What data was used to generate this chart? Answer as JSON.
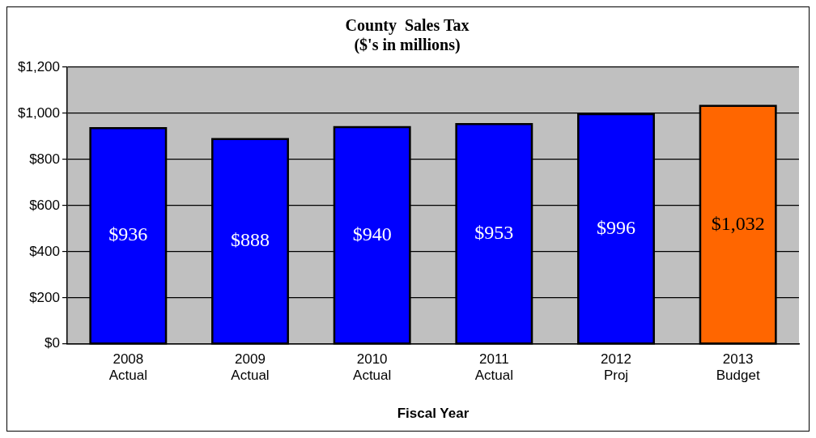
{
  "chart_data": {
    "type": "bar",
    "title": [
      "County  Sales Tax",
      "($'s in millions)"
    ],
    "xlabel": "Fiscal Year",
    "categories": [
      "2008\nActual",
      "2009\nActual",
      "2010\nActual",
      "2011\nActual",
      "2012\nProj",
      "2013\nBudget"
    ],
    "values": [
      936,
      888,
      940,
      953,
      996,
      1032
    ],
    "colors": [
      "#0000ff",
      "#0000ff",
      "#0000ff",
      "#0000ff",
      "#0000ff",
      "#ff6600"
    ],
    "value_labels": [
      "$936",
      "$888",
      "$940",
      "$953",
      "$996",
      "$1,032"
    ],
    "ylim": [
      0,
      1200
    ],
    "yticks": [
      {
        "value": 0,
        "label": "$0"
      },
      {
        "value": 200,
        "label": "$200"
      },
      {
        "value": 400,
        "label": "$400"
      },
      {
        "value": 600,
        "label": "$600"
      },
      {
        "value": 800,
        "label": "$800"
      },
      {
        "value": 1000,
        "label": "$1,000"
      },
      {
        "value": 1200,
        "label": "$1,200"
      }
    ],
    "grid": "y",
    "legend": false
  }
}
